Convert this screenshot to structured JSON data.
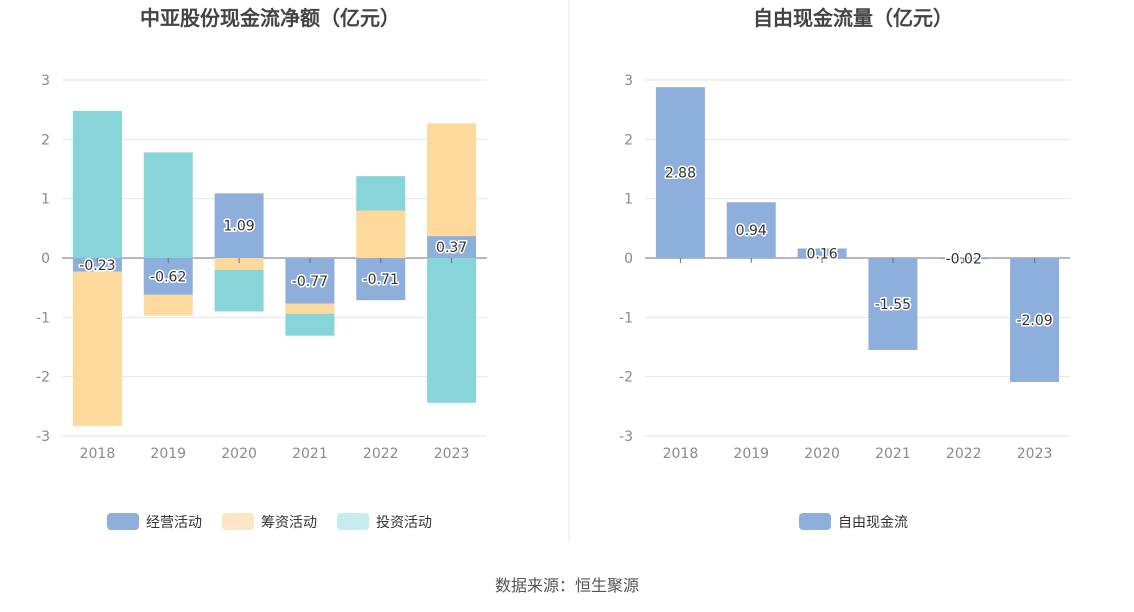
{
  "chart_data": [
    {
      "type": "bar",
      "stacked": true,
      "title": "中亚股份现金流净额（亿元）",
      "categories": [
        "2018",
        "2019",
        "2020",
        "2021",
        "2022",
        "2023"
      ],
      "ylim": [
        -3,
        3
      ],
      "yticks": [
        "3",
        "2",
        "1",
        "0",
        "-1",
        "-2",
        "-3"
      ],
      "grid": true,
      "legend_position": "bottom",
      "series": [
        {
          "name": "经营活动",
          "color": "#8eaedb",
          "values": [
            -0.23,
            -0.62,
            1.09,
            -0.77,
            -0.71,
            0.37
          ],
          "labels": [
            "-0.23",
            "-0.62",
            "1.09",
            "-0.77",
            "-0.71",
            "0.37"
          ]
        },
        {
          "name": "筹资活动",
          "color": "#fdd99b",
          "values": [
            -2.6,
            -0.35,
            -0.2,
            -0.17,
            0.8,
            1.9
          ]
        },
        {
          "name": "投资活动",
          "color": "#88d5d9",
          "values": [
            2.48,
            1.78,
            -0.7,
            -0.37,
            0.58,
            -2.44
          ]
        }
      ]
    },
    {
      "type": "bar",
      "title": "自由现金流量（亿元）",
      "categories": [
        "2018",
        "2019",
        "2020",
        "2021",
        "2022",
        "2023"
      ],
      "ylim": [
        -3,
        3
      ],
      "yticks": [
        "3",
        "2",
        "1",
        "0",
        "-1",
        "-2",
        "-3"
      ],
      "grid": true,
      "legend_position": "bottom",
      "series": [
        {
          "name": "自由现金流",
          "color": "#8eaedb",
          "values": [
            2.88,
            0.94,
            0.16,
            -1.55,
            -0.02,
            -2.09
          ],
          "labels": [
            "2.88",
            "0.94",
            "0.16",
            "-1.55",
            "-0.02",
            "-2.09"
          ]
        }
      ]
    }
  ],
  "source": "数据来源：恒生聚源",
  "colors": {
    "operating": "#8eaedb",
    "financing": "#fdd99b",
    "investing": "#88d5d9",
    "legend_investing": "#c5ecee",
    "legend_financing": "#fde6c4"
  }
}
